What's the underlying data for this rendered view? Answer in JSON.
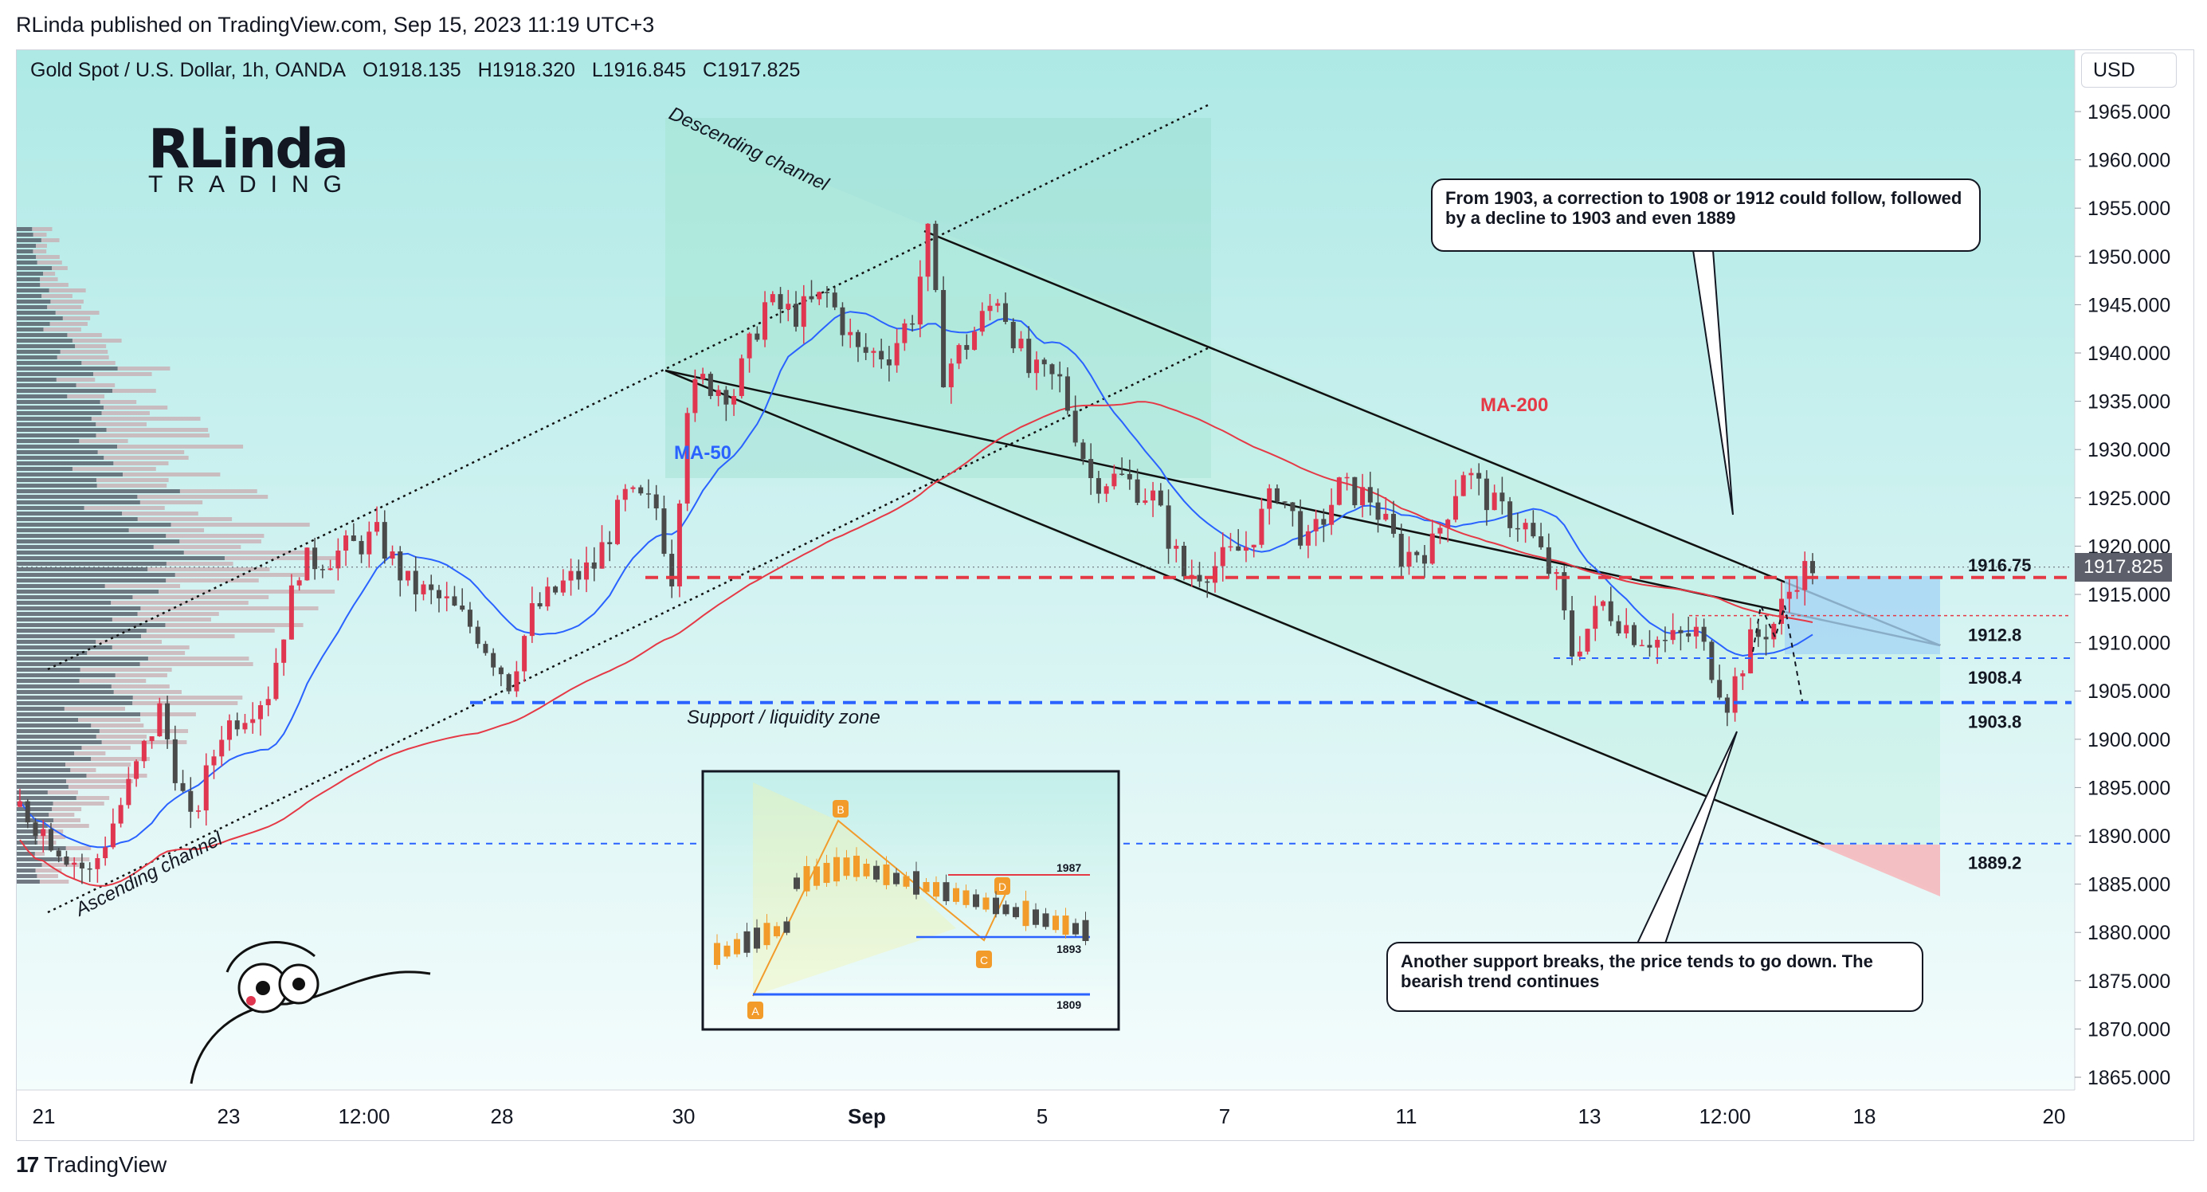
{
  "header": {
    "published": "RLinda published on TradingView.com, Sep 15, 2023 11:19 UTC+3"
  },
  "legend": {
    "symbol": "Gold Spot / U.S. Dollar, 1h, OANDA",
    "open": "O1918.135",
    "high": "H1918.320",
    "low": "L1916.845",
    "close": "C1917.825"
  },
  "currency_button": "USD",
  "current_price_tag": "1917.825",
  "logo": {
    "title": "RLinda",
    "subtitle": "TRADING"
  },
  "footer": {
    "brand": "TradingView"
  },
  "callouts": {
    "top": "From 1903, a correction to 1908 or 1912 could follow, followed by a decline to 1903 and even 1889",
    "bottom": "Another support breaks, the price tends to go down. The bearish trend continues"
  },
  "colors": {
    "background_top": "#aee9e6",
    "background_bottom": "#f2fcfc",
    "bull_candle": "#e0364f",
    "bear_candle": "#4a4a4a",
    "ma50": "#2962ff",
    "ma200": "#e53946",
    "resistance_line": "#e53946",
    "support_line": "#2962ff",
    "target_box": "#a7d4f5",
    "sell_box": "#f6b9bd"
  },
  "chart_data": {
    "type": "candlestick",
    "title": "",
    "ylim": [
      1862,
      1969
    ],
    "y_ticks": [
      "1965.000",
      "1960.000",
      "1955.000",
      "1950.000",
      "1945.000",
      "1940.000",
      "1935.000",
      "1930.000",
      "1925.000",
      "1920.000",
      "1915.000",
      "1910.000",
      "1905.000",
      "1900.000",
      "1895.000",
      "1890.000",
      "1885.000",
      "1880.000",
      "1875.000",
      "1870.000",
      "1865.000"
    ],
    "x_ticks": [
      "21",
      "23",
      "12:00",
      "28",
      "30",
      "Sep",
      "5",
      "7",
      "11",
      "13",
      "12:00",
      "18",
      "20"
    ],
    "approx_close_path": [
      [
        0,
        1893
      ],
      [
        5,
        1889
      ],
      [
        9,
        1886
      ],
      [
        14,
        1895
      ],
      [
        18,
        1903
      ],
      [
        22,
        1891
      ],
      [
        26,
        1901
      ],
      [
        32,
        1905
      ],
      [
        36,
        1918
      ],
      [
        40,
        1919
      ],
      [
        46,
        1921
      ],
      [
        50,
        1916
      ],
      [
        55,
        1914
      ],
      [
        59,
        1911
      ],
      [
        63,
        1906
      ],
      [
        66,
        1913
      ],
      [
        70,
        1916
      ],
      [
        74,
        1918
      ],
      [
        78,
        1925
      ],
      [
        82,
        1924
      ],
      [
        84,
        1917
      ],
      [
        86,
        1935
      ],
      [
        88,
        1937
      ],
      [
        92,
        1936
      ],
      [
        96,
        1945
      ],
      [
        100,
        1944
      ],
      [
        104,
        1946
      ],
      [
        108,
        1940
      ],
      [
        112,
        1940
      ],
      [
        115,
        1944
      ],
      [
        117,
        1952
      ],
      [
        119,
        1938
      ],
      [
        122,
        1941
      ],
      [
        126,
        1946
      ],
      [
        130,
        1938
      ],
      [
        134,
        1937
      ],
      [
        138,
        1927
      ],
      [
        142,
        1927
      ],
      [
        146,
        1925
      ],
      [
        150,
        1917
      ],
      [
        154,
        1918
      ],
      [
        158,
        1920
      ],
      [
        162,
        1926
      ],
      [
        166,
        1920
      ],
      [
        170,
        1926
      ],
      [
        174,
        1925
      ],
      [
        178,
        1919
      ],
      [
        182,
        1920
      ],
      [
        186,
        1928
      ],
      [
        190,
        1924
      ],
      [
        194,
        1922
      ],
      [
        198,
        1916
      ],
      [
        200,
        1909
      ],
      [
        204,
        1914
      ],
      [
        208,
        1911
      ],
      [
        212,
        1910
      ],
      [
        216,
        1911
      ],
      [
        220,
        1904
      ],
      [
        223,
        1910
      ],
      [
        226,
        1912
      ],
      [
        229,
        1917
      ],
      [
        231,
        1918
      ]
    ],
    "indicators": [
      {
        "name": "MA-50",
        "color": "#2962ff"
      },
      {
        "name": "MA-200",
        "color": "#e53946"
      }
    ],
    "levels": [
      {
        "label": "1916.75",
        "value": 1916.75,
        "style": "dashed-red"
      },
      {
        "label": "1912.8",
        "value": 1912.8,
        "style": "dotted-red"
      },
      {
        "label": "1908.4",
        "value": 1908.4,
        "style": "dashed-blue-thin"
      },
      {
        "label": "1903.8",
        "value": 1903.8,
        "style": "dashed-blue"
      },
      {
        "label": "1889.2",
        "value": 1889.2,
        "style": "dashed-blue-thin"
      }
    ],
    "annotations": [
      "Descending channel",
      "Ascending channel",
      "Support / liquidity zone",
      "MA-50",
      "MA-200"
    ],
    "inset": {
      "labels": [
        "A",
        "B",
        "C",
        "D"
      ],
      "levels": [
        "1987",
        "1893",
        "1809"
      ]
    }
  }
}
